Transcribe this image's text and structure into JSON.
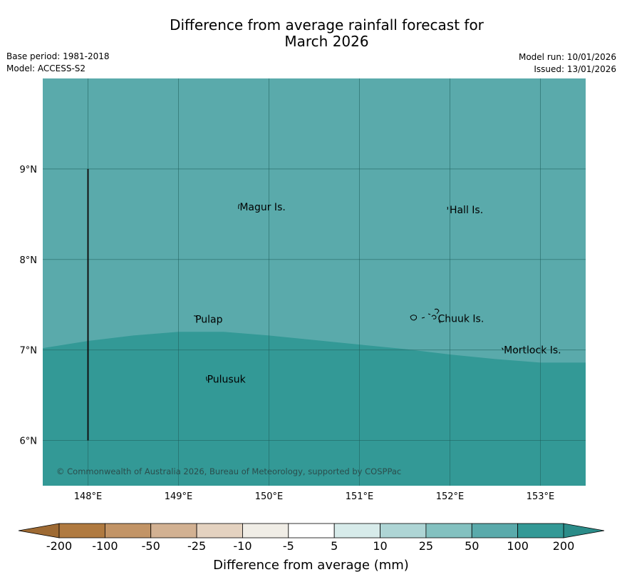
{
  "header": {
    "title_line1": "Difference from average rainfall forecast for",
    "title_line2": "March 2026",
    "base_period": "Base period: 1981-2018",
    "model": "Model: ACCESS-S2",
    "model_run": "Model run: 10/01/2026",
    "issued": "Issued: 13/01/2026"
  },
  "map": {
    "lon_range": [
      147.5,
      153.5
    ],
    "lat_range": [
      5.5,
      10.0
    ],
    "lat_ticks": [
      {
        "value": 9,
        "label": "9°N"
      },
      {
        "value": 8,
        "label": "8°N"
      },
      {
        "value": 7,
        "label": "7°N"
      },
      {
        "value": 6,
        "label": "6°N"
      }
    ],
    "lon_ticks": [
      {
        "value": 148,
        "label": "148°E"
      },
      {
        "value": 149,
        "label": "149°E"
      },
      {
        "value": 150,
        "label": "150°E"
      },
      {
        "value": 151,
        "label": "151°E"
      },
      {
        "value": 152,
        "label": "152°E"
      },
      {
        "value": 153,
        "label": "153°E"
      }
    ],
    "places": [
      {
        "name": "Magur Is.",
        "lon": 149.66,
        "lat": 8.58
      },
      {
        "name": "Hall Is.",
        "lon": 151.98,
        "lat": 8.55
      },
      {
        "name": "Pulap",
        "lon": 149.17,
        "lat": 7.34
      },
      {
        "name": "Chuuk Is.",
        "lon": 151.85,
        "lat": 7.35
      },
      {
        "name": "Mortlock Is.",
        "lon": 152.58,
        "lat": 7.0
      },
      {
        "name": "Pulusuk",
        "lon": 149.3,
        "lat": 6.68
      }
    ],
    "boundary_line": {
      "lon": 148.0,
      "lat_from": 6.0,
      "lat_to": 9.0
    },
    "zone_50_to_100": {
      "color": "#5aaaab",
      "range": "50 to 100"
    },
    "zone_100_to_200": {
      "color": "#339996",
      "range": "100 to 200"
    },
    "zone_boundary": [
      {
        "lon": 147.5,
        "lat": 7.02
      },
      {
        "lon": 148.0,
        "lat": 7.1
      },
      {
        "lon": 148.5,
        "lat": 7.16
      },
      {
        "lon": 149.0,
        "lat": 7.2
      },
      {
        "lon": 149.5,
        "lat": 7.2
      },
      {
        "lon": 150.0,
        "lat": 7.16
      },
      {
        "lon": 150.5,
        "lat": 7.11
      },
      {
        "lon": 151.0,
        "lat": 7.06
      },
      {
        "lon": 151.5,
        "lat": 7.01
      },
      {
        "lon": 152.0,
        "lat": 6.95
      },
      {
        "lon": 152.5,
        "lat": 6.9
      },
      {
        "lon": 153.0,
        "lat": 6.86
      },
      {
        "lon": 153.5,
        "lat": 6.86
      }
    ],
    "copyright": "© Commonwealth of Australia 2026, Bureau of Meteorology, supported by COSPPac"
  },
  "colorbar": {
    "title": "Difference from average (mm)",
    "ticks": [
      "-200",
      "-100",
      "-50",
      "-25",
      "-10",
      "-5",
      "5",
      "10",
      "25",
      "50",
      "100",
      "200"
    ],
    "low_extend_color": "#9e6a33",
    "high_extend_color": "#2b8c89",
    "bins": [
      "#b07a40",
      "#c29466",
      "#d2b192",
      "#e4d2c0",
      "#f0ede6",
      "#ffffff",
      "#d7ebea",
      "#aed5d5",
      "#83c1c0",
      "#5aaaab",
      "#339996"
    ]
  }
}
